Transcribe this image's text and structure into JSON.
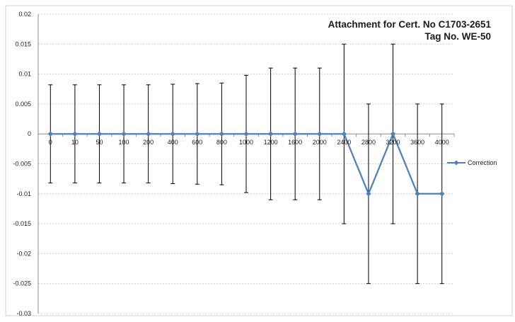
{
  "chart_data": {
    "type": "line",
    "title_lines": [
      "Attachment for Cert. No C1703-2651",
      "Tag No. WE-50"
    ],
    "categories": [
      "0",
      "10",
      "50",
      "100",
      "200",
      "400",
      "600",
      "800",
      "1000",
      "1200",
      "1600",
      "2000",
      "2400",
      "2800",
      "3200",
      "3600",
      "4000"
    ],
    "series": [
      {
        "name": "Correction",
        "color": "#4f81bd",
        "values": [
          0,
          0,
          0,
          0,
          0,
          0,
          0,
          0,
          0,
          0,
          0,
          0,
          0,
          -0.01,
          0,
          -0.01,
          -0.01
        ],
        "error": [
          0.0082,
          0.0082,
          0.0082,
          0.0082,
          0.0082,
          0.0083,
          0.0084,
          0.0085,
          0.0098,
          0.011,
          0.011,
          0.011,
          0.015,
          0.015,
          0.015,
          0.015,
          0.015
        ]
      }
    ],
    "ylim": [
      -0.03,
      0.02
    ],
    "yticks": [
      "0.02",
      "0.015",
      "0.01",
      "0.005",
      "0",
      "-0.005",
      "-0.01",
      "-0.015",
      "-0.02",
      "-0.025",
      "-0.03"
    ],
    "ytick_values": [
      0.02,
      0.015,
      0.01,
      0.005,
      0,
      -0.005,
      -0.01,
      -0.015,
      -0.02,
      -0.025,
      -0.03
    ],
    "grid": true,
    "legend_position": "right"
  }
}
